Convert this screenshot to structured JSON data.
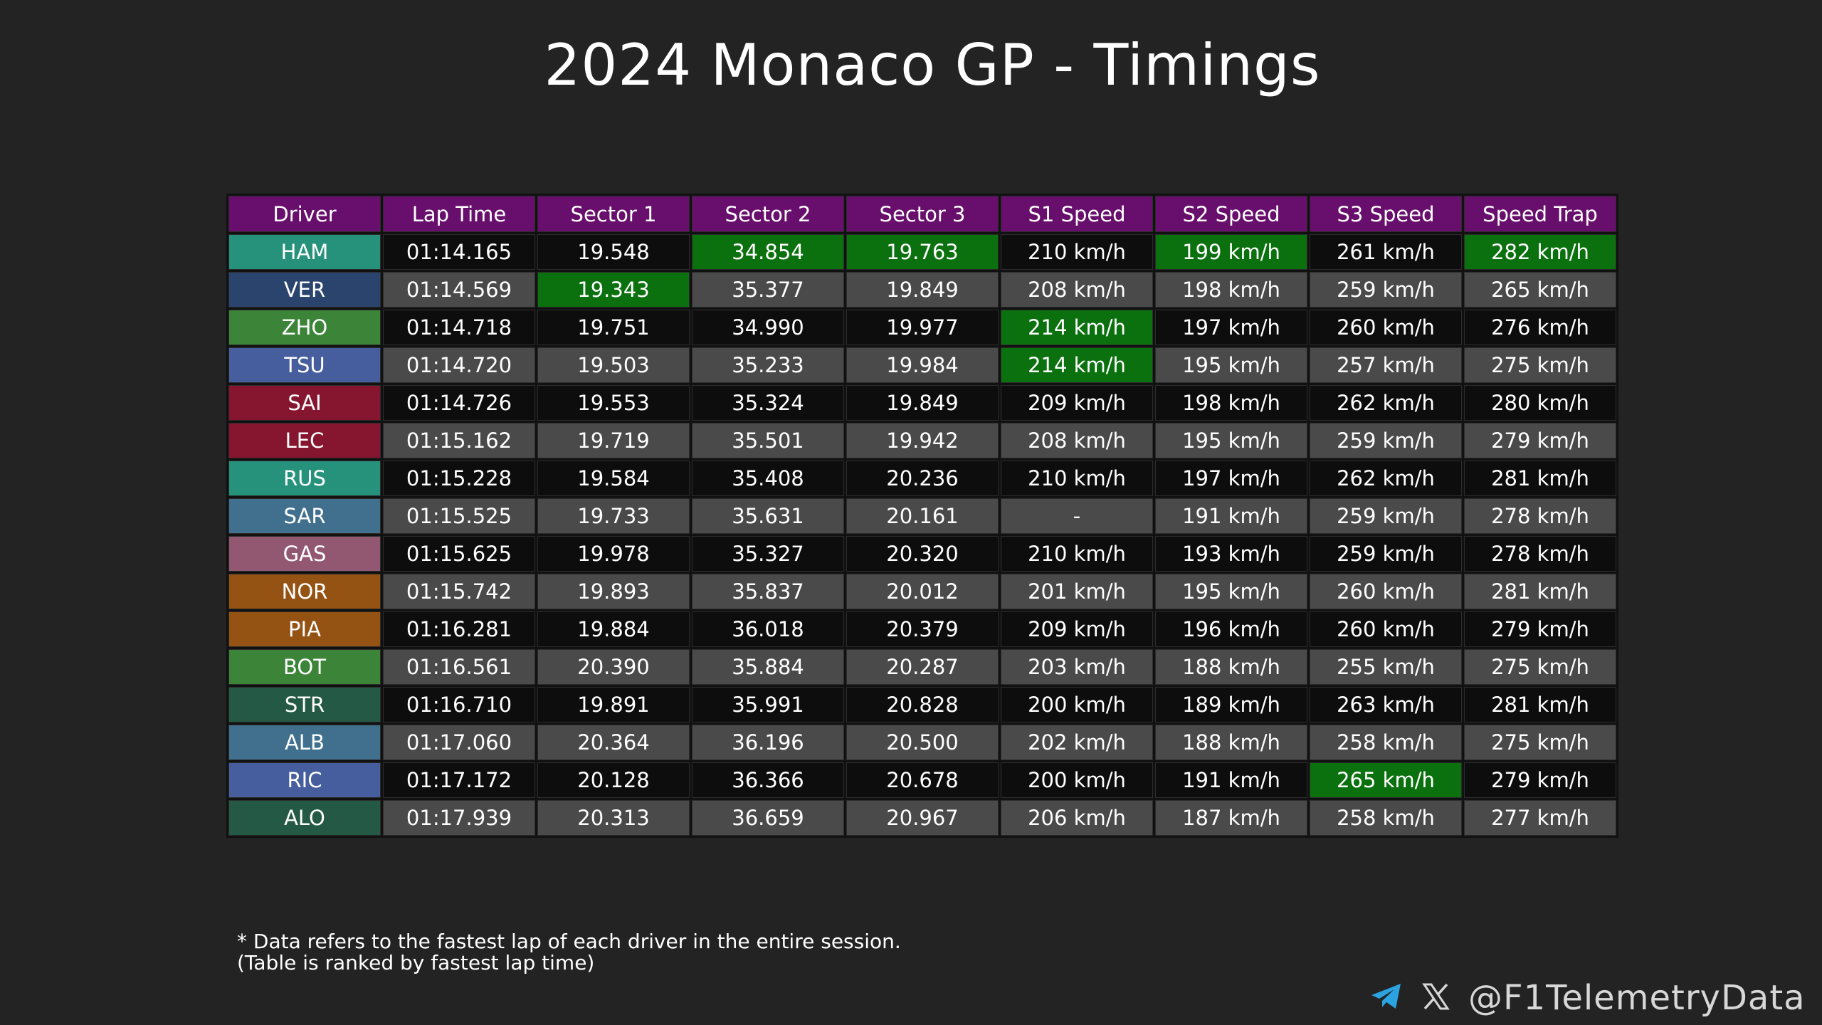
{
  "title": "2024 Monaco GP - Timings",
  "watermark": "@F1TelemetryData",
  "footnote": {
    "line1": "* Data refers to the fastest lap of each driver in the entire session.",
    "line2": "(Table is ranked by fastest lap time)"
  },
  "brand": {
    "handle": "@F1TelemetryData",
    "icons": [
      "telegram-icon",
      "x-icon"
    ],
    "telegram_color": "#2aa3e0"
  },
  "colors": {
    "header_bg": "#680e6c",
    "best_bg": "#0b710e",
    "row_dark": "#0d0d0d",
    "row_light": "#4a4a4a"
  },
  "chart_data": {
    "type": "table",
    "title": "2024 Monaco GP - Timings",
    "columns": [
      "Driver",
      "Lap Time",
      "Sector 1",
      "Sector 2",
      "Sector 3",
      "S1 Speed",
      "S2 Speed",
      "S3 Speed",
      "Speed Trap"
    ],
    "rows": [
      {
        "cells": [
          "HAM",
          "01:14.165",
          "19.548",
          "34.854",
          "19.763",
          "210 km/h",
          "199 km/h",
          "261 km/h",
          "282 km/h"
        ],
        "driver_color": "#27927c",
        "best": [
          3,
          4,
          6,
          8
        ]
      },
      {
        "cells": [
          "VER",
          "01:14.569",
          "19.343",
          "35.377",
          "19.849",
          "208 km/h",
          "198 km/h",
          "259 km/h",
          "265 km/h"
        ],
        "driver_color": "#2a446e",
        "best": [
          2
        ]
      },
      {
        "cells": [
          "ZHO",
          "01:14.718",
          "19.751",
          "34.990",
          "19.977",
          "214 km/h",
          "197 km/h",
          "260 km/h",
          "276 km/h"
        ],
        "driver_color": "#3b8438",
        "best": [
          5
        ]
      },
      {
        "cells": [
          "TSU",
          "01:14.720",
          "19.503",
          "35.233",
          "19.984",
          "214 km/h",
          "195 km/h",
          "257 km/h",
          "275 km/h"
        ],
        "driver_color": "#465e9e",
        "best": [
          5
        ]
      },
      {
        "cells": [
          "SAI",
          "01:14.726",
          "19.553",
          "35.324",
          "19.849",
          "209 km/h",
          "198 km/h",
          "262 km/h",
          "280 km/h"
        ],
        "driver_color": "#861530",
        "best": []
      },
      {
        "cells": [
          "LEC",
          "01:15.162",
          "19.719",
          "35.501",
          "19.942",
          "208 km/h",
          "195 km/h",
          "259 km/h",
          "279 km/h"
        ],
        "driver_color": "#861530",
        "best": []
      },
      {
        "cells": [
          "RUS",
          "01:15.228",
          "19.584",
          "35.408",
          "20.236",
          "210 km/h",
          "197 km/h",
          "262 km/h",
          "281 km/h"
        ],
        "driver_color": "#27927c",
        "best": []
      },
      {
        "cells": [
          "SAR",
          "01:15.525",
          "19.733",
          "35.631",
          "20.161",
          "-",
          "191 km/h",
          "259 km/h",
          "278 km/h"
        ],
        "driver_color": "#41708f",
        "best": []
      },
      {
        "cells": [
          "GAS",
          "01:15.625",
          "19.978",
          "35.327",
          "20.320",
          "210 km/h",
          "193 km/h",
          "259 km/h",
          "278 km/h"
        ],
        "driver_color": "#925872",
        "best": []
      },
      {
        "cells": [
          "NOR",
          "01:15.742",
          "19.893",
          "35.837",
          "20.012",
          "201 km/h",
          "195 km/h",
          "260 km/h",
          "281 km/h"
        ],
        "driver_color": "#945213",
        "best": []
      },
      {
        "cells": [
          "PIA",
          "01:16.281",
          "19.884",
          "36.018",
          "20.379",
          "209 km/h",
          "196 km/h",
          "260 km/h",
          "279 km/h"
        ],
        "driver_color": "#945213",
        "best": []
      },
      {
        "cells": [
          "BOT",
          "01:16.561",
          "20.390",
          "35.884",
          "20.287",
          "203 km/h",
          "188 km/h",
          "255 km/h",
          "275 km/h"
        ],
        "driver_color": "#3b8438",
        "best": []
      },
      {
        "cells": [
          "STR",
          "01:16.710",
          "19.891",
          "35.991",
          "20.828",
          "200 km/h",
          "189 km/h",
          "263 km/h",
          "281 km/h"
        ],
        "driver_color": "#245945",
        "best": []
      },
      {
        "cells": [
          "ALB",
          "01:17.060",
          "20.364",
          "36.196",
          "20.500",
          "202 km/h",
          "188 km/h",
          "258 km/h",
          "275 km/h"
        ],
        "driver_color": "#41708f",
        "best": []
      },
      {
        "cells": [
          "RIC",
          "01:17.172",
          "20.128",
          "36.366",
          "20.678",
          "200 km/h",
          "191 km/h",
          "265 km/h",
          "279 km/h"
        ],
        "driver_color": "#465e9e",
        "best": [
          7
        ]
      },
      {
        "cells": [
          "ALO",
          "01:17.939",
          "20.313",
          "36.659",
          "20.967",
          "206 km/h",
          "187 km/h",
          "258 km/h",
          "277 km/h"
        ],
        "driver_color": "#245945",
        "best": []
      }
    ]
  }
}
